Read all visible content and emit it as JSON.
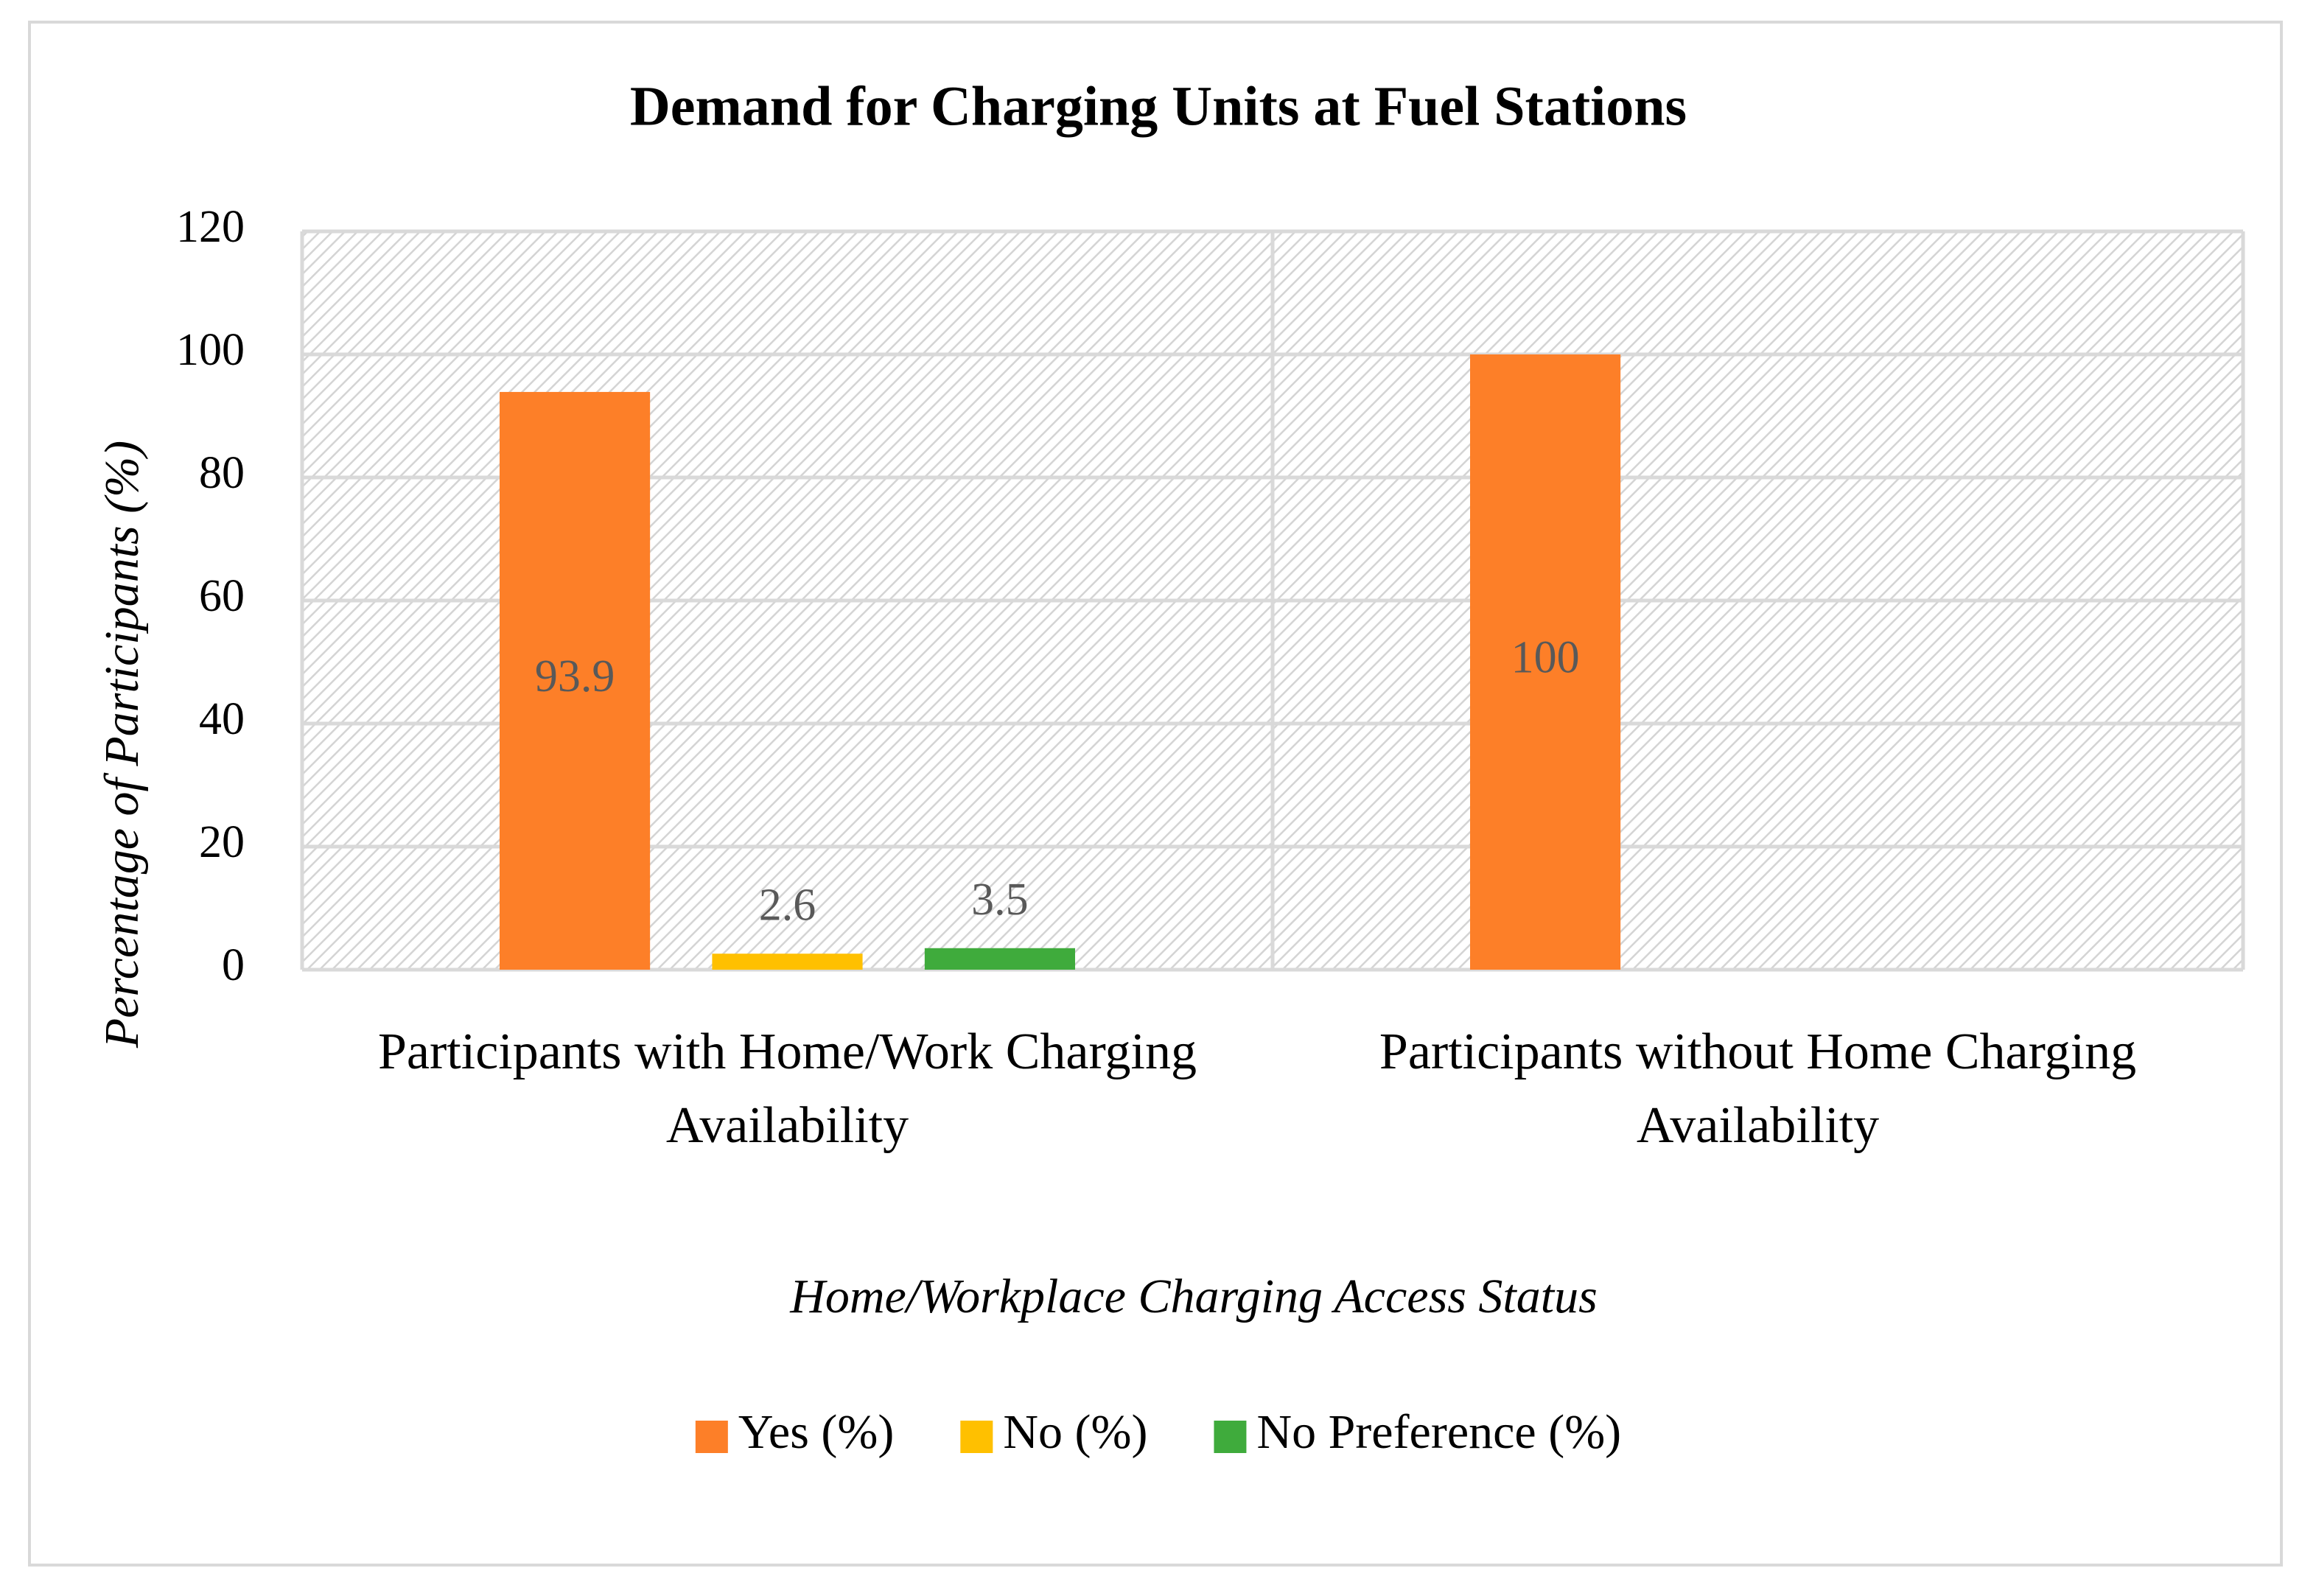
{
  "chart_data": {
    "type": "bar",
    "title": "Demand for Charging Units at Fuel Stations",
    "x_label": "Home/Workplace Charging Access Status",
    "y_label": "Percentage of Participants (%)",
    "categories": [
      "Participants with Home/Work Charging Availability",
      "Participants without Home Charging Availability"
    ],
    "series": [
      {
        "name": "Yes (%)",
        "color": "#fd7f28",
        "values": [
          93.9,
          100
        ]
      },
      {
        "name": "No (%)",
        "color": "#ffc000",
        "values": [
          2.6,
          null
        ]
      },
      {
        "name": "No Preference (%)",
        "color": "#3fab3c",
        "values": [
          3.5,
          null
        ]
      }
    ],
    "ylim": [
      0,
      120
    ],
    "yticks": [
      0,
      20,
      40,
      60,
      80,
      100,
      120
    ],
    "grid": true,
    "legend": "bottom"
  }
}
